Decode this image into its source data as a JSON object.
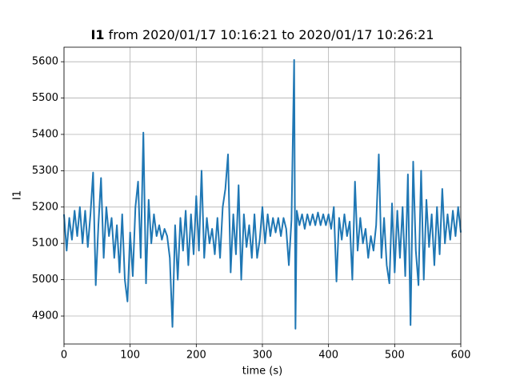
{
  "chart_data": {
    "type": "line",
    "title_bold": "I1",
    "title": "from 2020/01/17 10:16:21 to 2020/01/17 10:26:21",
    "xlabel": "time (s)",
    "ylabel": "I1",
    "x": [
      0,
      4,
      8,
      12,
      16,
      20,
      24,
      28,
      32,
      36,
      40,
      44,
      48,
      52,
      56,
      60,
      64,
      68,
      72,
      76,
      80,
      84,
      88,
      92,
      96,
      100,
      104,
      108,
      112,
      116,
      120,
      124,
      128,
      132,
      136,
      140,
      144,
      148,
      152,
      156,
      160,
      164,
      168,
      172,
      176,
      180,
      184,
      188,
      192,
      196,
      200,
      204,
      208,
      212,
      216,
      220,
      224,
      228,
      232,
      236,
      240,
      244,
      248,
      252,
      256,
      260,
      264,
      268,
      272,
      276,
      280,
      284,
      288,
      292,
      296,
      300,
      304,
      308,
      312,
      316,
      320,
      324,
      328,
      332,
      336,
      340,
      344,
      348,
      350,
      352,
      356,
      360,
      364,
      368,
      372,
      376,
      380,
      384,
      388,
      392,
      396,
      400,
      404,
      408,
      412,
      416,
      420,
      424,
      428,
      432,
      436,
      440,
      444,
      448,
      452,
      456,
      460,
      464,
      468,
      472,
      476,
      480,
      484,
      488,
      492,
      496,
      500,
      504,
      508,
      512,
      516,
      520,
      524,
      528,
      532,
      536,
      540,
      544,
      548,
      552,
      556,
      560,
      564,
      568,
      572,
      576,
      580,
      584,
      588,
      592,
      596,
      600
    ],
    "values": [
      5180,
      5080,
      5170,
      5110,
      5190,
      5120,
      5200,
      5100,
      5190,
      5090,
      5180,
      5295,
      4985,
      5150,
      5280,
      5060,
      5200,
      5120,
      5170,
      5060,
      5150,
      5020,
      5180,
      5000,
      4940,
      5130,
      5010,
      5200,
      5270,
      5060,
      5405,
      4990,
      5220,
      5100,
      5180,
      5120,
      5150,
      5110,
      5140,
      5120,
      5060,
      4870,
      5150,
      5000,
      5170,
      5080,
      5190,
      5040,
      5180,
      5070,
      5230,
      5080,
      5300,
      5060,
      5170,
      5100,
      5140,
      5070,
      5170,
      5060,
      5200,
      5250,
      5345,
      5020,
      5180,
      5070,
      5260,
      5000,
      5180,
      5090,
      5150,
      5060,
      5180,
      5060,
      5110,
      5200,
      5100,
      5180,
      5120,
      5170,
      5130,
      5170,
      5120,
      5170,
      5140,
      5040,
      5165,
      5605,
      4865,
      5190,
      5150,
      5180,
      5140,
      5180,
      5150,
      5180,
      5150,
      5185,
      5150,
      5180,
      5150,
      5180,
      5140,
      5200,
      4995,
      5170,
      5110,
      5180,
      5120,
      5160,
      5000,
      5270,
      5080,
      5170,
      5100,
      5140,
      5060,
      5120,
      5080,
      5150,
      5345,
      5060,
      5170,
      5040,
      4990,
      5210,
      5020,
      5190,
      5060,
      5200,
      5010,
      5290,
      4875,
      5325,
      5080,
      4985,
      5300,
      5000,
      5220,
      5090,
      5180,
      5040,
      5200,
      5070,
      5250,
      5100,
      5180,
      5110,
      5190,
      5120,
      5200,
      5130
    ],
    "color": "#1f77b4",
    "xlim": [
      0,
      600
    ],
    "ylim": [
      4823,
      5640
    ],
    "xticks": [
      0,
      100,
      200,
      300,
      400,
      500,
      600
    ],
    "yticks": [
      4900,
      5000,
      5100,
      5200,
      5300,
      5400,
      5500,
      5600
    ],
    "grid": true
  }
}
